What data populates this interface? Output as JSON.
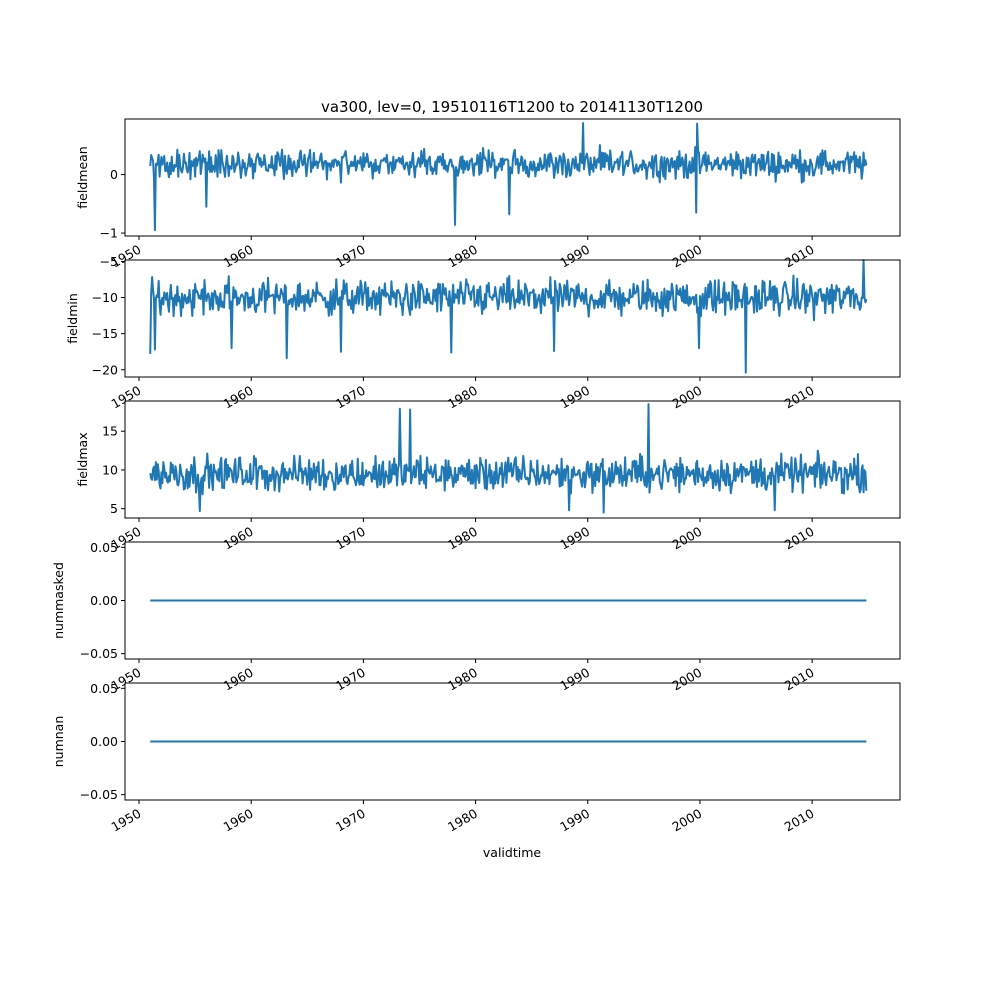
{
  "chart_data": {
    "type": "line",
    "title": "va300, lev=0, 19510116T1200 to 20141130T1200",
    "xlabel": "validtime",
    "xlim": [
      "1948-10-01",
      "2017-11-01"
    ],
    "x_start": "1951-01",
    "x_end": "2014-11",
    "x_ticks": [
      "1950",
      "1960",
      "1970",
      "1980",
      "1990",
      "2000",
      "2010"
    ],
    "line_color": "#1f77b4",
    "grid": false,
    "panels": [
      {
        "name": "fieldmean",
        "ylabel": "fieldmean",
        "ylim": [
          -1.05,
          0.95
        ],
        "yticks": [
          -1,
          0
        ],
        "ytick_labels": [
          "−1",
          "0"
        ],
        "base": 0.18,
        "amplitude": 0.26,
        "spikes": [
          [
            "1951-06",
            -0.95
          ],
          [
            "1978-03",
            -0.86
          ],
          [
            "1983-01",
            -0.68
          ],
          [
            "1989-08",
            0.88
          ],
          [
            "1999-10",
            0.87
          ],
          [
            "1999-09",
            -0.65
          ],
          [
            "1956-01",
            -0.55
          ]
        ]
      },
      {
        "name": "fieldmin",
        "ylabel": "fieldmin",
        "ylim": [
          -21.0,
          -4.8
        ],
        "yticks": [
          -20,
          -15,
          -10,
          -5
        ],
        "ytick_labels": [
          "−20",
          "−15",
          "−10",
          "−5"
        ],
        "base": -10.0,
        "amplitude": 2.6,
        "spikes": [
          [
            "1951-01",
            -17.8
          ],
          [
            "1951-06",
            -17.2
          ],
          [
            "1963-03",
            -18.4
          ],
          [
            "2004-02",
            -20.4
          ],
          [
            "2014-08",
            -4.8
          ],
          [
            "1958-04",
            -17.0
          ],
          [
            "1968-01",
            -17.5
          ],
          [
            "1977-11",
            -17.6
          ],
          [
            "1987-01",
            -17.4
          ],
          [
            "1999-12",
            -17.0
          ]
        ]
      },
      {
        "name": "fieldmax",
        "ylabel": "fieldmax",
        "ylim": [
          3.8,
          18.9
        ],
        "yticks": [
          5,
          10,
          15
        ],
        "ytick_labels": [
          "5",
          "10",
          "15"
        ],
        "base": 9.5,
        "amplitude": 2.4,
        "spikes": [
          [
            "1973-04",
            17.9
          ],
          [
            "1995-06",
            18.5
          ],
          [
            "1991-06",
            4.5
          ],
          [
            "1955-06",
            4.7
          ],
          [
            "2006-09",
            4.8
          ],
          [
            "1974-03",
            17.8
          ],
          [
            "1988-05",
            4.8
          ]
        ]
      },
      {
        "name": "nummasked",
        "ylabel": "nummasked",
        "ylim": [
          -0.055,
          0.055
        ],
        "yticks": [
          -0.05,
          0.0,
          0.05
        ],
        "ytick_labels": [
          "−0.05",
          "0.00",
          "0.05"
        ],
        "constant": 0
      },
      {
        "name": "numnan",
        "ylabel": "numnan",
        "ylim": [
          -0.055,
          0.055
        ],
        "yticks": [
          -0.05,
          0.0,
          0.05
        ],
        "ytick_labels": [
          "−0.05",
          "0.00",
          "0.05"
        ],
        "constant": 0
      }
    ]
  }
}
